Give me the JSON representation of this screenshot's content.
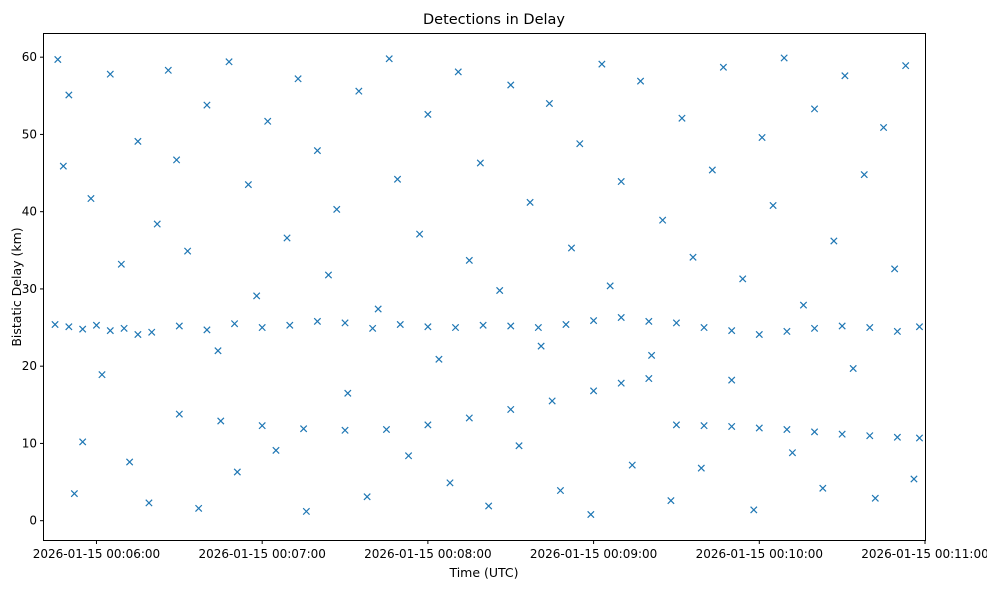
{
  "chart_data": {
    "type": "scatter",
    "title": "Detections in Delay",
    "xlabel": "Time (UTC)",
    "ylabel": "Bistatic Delay (km)",
    "marker": "x",
    "color": "#1f77b4",
    "grid": false,
    "legend": "none",
    "x_axis": {
      "kind": "time",
      "range": [
        "2026-01-15 00:05:41",
        "2026-01-15 00:11:00"
      ],
      "ticks": [
        "2026-01-15 00:06:00",
        "2026-01-15 00:07:00",
        "2026-01-15 00:08:00",
        "2026-01-15 00:09:00",
        "2026-01-15 00:10:00",
        "2026-01-15 00:11:00"
      ]
    },
    "y_axis": {
      "range": [
        -2.5,
        63
      ],
      "ticks": [
        0,
        10,
        20,
        30,
        40,
        50,
        60
      ]
    },
    "data_extent": {
      "time_start": "2026-01-15 00:05:44",
      "time_end": "2026-01-15 00:10:58",
      "delay_min": 0.5,
      "delay_max": 60
    },
    "series": [
      {
        "description_role": "stationary track near 25 km",
        "points": [
          [
            "00:05:45",
            25.4
          ],
          [
            "00:05:50",
            25.1
          ],
          [
            "00:05:55",
            24.8
          ],
          [
            "00:06:00",
            25.3
          ],
          [
            "00:06:05",
            24.6
          ],
          [
            "00:06:10",
            24.9
          ],
          [
            "00:06:15",
            24.1
          ],
          [
            "00:06:20",
            24.4
          ],
          [
            "00:06:30",
            25.2
          ],
          [
            "00:06:40",
            24.7
          ],
          [
            "00:06:50",
            25.5
          ],
          [
            "00:07:00",
            25.0
          ],
          [
            "00:07:10",
            25.3
          ],
          [
            "00:07:20",
            25.8
          ],
          [
            "00:07:30",
            25.6
          ],
          [
            "00:07:40",
            24.9
          ],
          [
            "00:07:50",
            25.4
          ],
          [
            "00:08:00",
            25.1
          ],
          [
            "00:08:10",
            25.0
          ],
          [
            "00:08:20",
            25.3
          ],
          [
            "00:08:30",
            25.2
          ],
          [
            "00:08:40",
            25.0
          ],
          [
            "00:08:50",
            25.4
          ],
          [
            "00:09:00",
            25.9
          ],
          [
            "00:09:10",
            26.3
          ],
          [
            "00:09:20",
            25.8
          ],
          [
            "00:09:30",
            25.6
          ],
          [
            "00:09:40",
            25.0
          ],
          [
            "00:09:50",
            24.6
          ],
          [
            "00:10:00",
            24.1
          ],
          [
            "00:10:10",
            24.5
          ],
          [
            "00:10:20",
            24.9
          ],
          [
            "00:10:30",
            25.2
          ],
          [
            "00:10:40",
            25.0
          ],
          [
            "00:10:50",
            24.5
          ],
          [
            "00:10:58",
            25.1
          ]
        ]
      },
      {
        "description_role": "moving target track",
        "points": [
          [
            "00:06:30",
            13.8
          ],
          [
            "00:06:45",
            12.9
          ],
          [
            "00:07:00",
            12.3
          ],
          [
            "00:07:15",
            11.9
          ],
          [
            "00:07:30",
            11.7
          ],
          [
            "00:07:45",
            11.8
          ],
          [
            "00:08:00",
            12.4
          ],
          [
            "00:08:15",
            13.3
          ],
          [
            "00:08:30",
            14.4
          ],
          [
            "00:08:45",
            15.5
          ],
          [
            "00:09:00",
            16.8
          ],
          [
            "00:09:10",
            17.8
          ],
          [
            "00:09:20",
            18.4
          ]
        ]
      },
      {
        "description_role": "secondary track near 12 km",
        "points": [
          [
            "00:09:30",
            12.4
          ],
          [
            "00:09:40",
            12.3
          ],
          [
            "00:09:50",
            12.2
          ],
          [
            "00:10:00",
            12.0
          ],
          [
            "00:10:10",
            11.8
          ],
          [
            "00:10:20",
            11.5
          ],
          [
            "00:10:30",
            11.2
          ],
          [
            "00:10:40",
            11.0
          ],
          [
            "00:10:50",
            10.8
          ],
          [
            "00:10:58",
            10.7
          ]
        ]
      },
      {
        "description_role": "clutter (sample)",
        "points": [
          [
            "00:05:46",
            59.7
          ],
          [
            "00:05:48",
            45.9
          ],
          [
            "00:05:50",
            55.1
          ],
          [
            "00:05:52",
            3.5
          ],
          [
            "00:05:55",
            10.2
          ],
          [
            "00:05:58",
            41.7
          ],
          [
            "00:06:02",
            18.9
          ],
          [
            "00:06:05",
            57.8
          ],
          [
            "00:06:09",
            33.2
          ],
          [
            "00:06:12",
            7.6
          ],
          [
            "00:06:15",
            49.1
          ],
          [
            "00:06:19",
            2.3
          ],
          [
            "00:06:22",
            38.4
          ],
          [
            "00:06:26",
            58.3
          ],
          [
            "00:06:29",
            46.7
          ],
          [
            "00:06:33",
            34.9
          ],
          [
            "00:06:37",
            1.6
          ],
          [
            "00:06:40",
            53.8
          ],
          [
            "00:06:44",
            22.0
          ],
          [
            "00:06:48",
            59.4
          ],
          [
            "00:06:51",
            6.3
          ],
          [
            "00:06:55",
            43.5
          ],
          [
            "00:06:58",
            29.1
          ],
          [
            "00:07:02",
            51.7
          ],
          [
            "00:07:05",
            9.1
          ],
          [
            "00:07:09",
            36.6
          ],
          [
            "00:07:13",
            57.2
          ],
          [
            "00:07:16",
            1.2
          ],
          [
            "00:07:20",
            47.9
          ],
          [
            "00:07:24",
            31.8
          ],
          [
            "00:07:27",
            40.3
          ],
          [
            "00:07:31",
            16.5
          ],
          [
            "00:07:35",
            55.6
          ],
          [
            "00:07:38",
            3.1
          ],
          [
            "00:07:42",
            27.4
          ],
          [
            "00:07:46",
            59.8
          ],
          [
            "00:07:49",
            44.2
          ],
          [
            "00:07:53",
            8.4
          ],
          [
            "00:07:57",
            37.1
          ],
          [
            "00:08:00",
            52.6
          ],
          [
            "00:08:04",
            20.9
          ],
          [
            "00:08:08",
            4.9
          ],
          [
            "00:08:11",
            58.1
          ],
          [
            "00:08:15",
            33.7
          ],
          [
            "00:08:19",
            46.3
          ],
          [
            "00:08:22",
            1.9
          ],
          [
            "00:08:26",
            29.8
          ],
          [
            "00:08:30",
            56.4
          ],
          [
            "00:08:33",
            9.7
          ],
          [
            "00:08:37",
            41.2
          ],
          [
            "00:08:41",
            22.6
          ],
          [
            "00:08:44",
            54.0
          ],
          [
            "00:08:48",
            3.9
          ],
          [
            "00:08:52",
            35.3
          ],
          [
            "00:08:55",
            48.8
          ],
          [
            "00:08:59",
            0.8
          ],
          [
            "00:09:03",
            59.1
          ],
          [
            "00:09:06",
            30.4
          ],
          [
            "00:09:10",
            43.9
          ],
          [
            "00:09:14",
            7.2
          ],
          [
            "00:09:17",
            56.9
          ],
          [
            "00:09:21",
            21.4
          ],
          [
            "00:09:25",
            38.9
          ],
          [
            "00:09:28",
            2.6
          ],
          [
            "00:09:32",
            52.1
          ],
          [
            "00:09:36",
            34.1
          ],
          [
            "00:09:39",
            6.8
          ],
          [
            "00:09:43",
            45.4
          ],
          [
            "00:09:47",
            58.7
          ],
          [
            "00:09:50",
            18.2
          ],
          [
            "00:09:54",
            31.3
          ],
          [
            "00:09:58",
            1.4
          ],
          [
            "00:10:01",
            49.6
          ],
          [
            "00:10:05",
            40.8
          ],
          [
            "00:10:09",
            59.9
          ],
          [
            "00:10:12",
            8.8
          ],
          [
            "00:10:16",
            27.9
          ],
          [
            "00:10:20",
            53.3
          ],
          [
            "00:10:23",
            4.2
          ],
          [
            "00:10:27",
            36.2
          ],
          [
            "00:10:31",
            57.6
          ],
          [
            "00:10:34",
            19.7
          ],
          [
            "00:10:38",
            44.8
          ],
          [
            "00:10:42",
            2.9
          ],
          [
            "00:10:45",
            50.9
          ],
          [
            "00:10:49",
            32.6
          ],
          [
            "00:10:53",
            58.9
          ],
          [
            "00:10:56",
            5.4
          ]
        ]
      }
    ]
  }
}
